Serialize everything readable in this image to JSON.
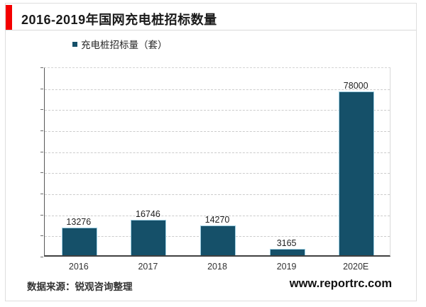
{
  "header": {
    "title": "2016-2019年国网充电桩招标数量",
    "accent_color": "#f40000"
  },
  "legend": {
    "label": "充电桩招标量（套）",
    "swatch_color": "#155069"
  },
  "chart_data": {
    "type": "bar",
    "title": "2016-2019年国网充电桩招标数量",
    "categories": [
      "2016",
      "2017",
      "2018",
      "2019",
      "2020E"
    ],
    "values": [
      13276,
      16746,
      14270,
      3165,
      78000
    ],
    "series_name": "充电桩招标量（套）",
    "xlabel": "",
    "ylabel": "",
    "ylim": [
      0,
      90000
    ],
    "ytick_step": 10000,
    "grid": "horizontal-dashed",
    "legend_position": "top",
    "bar_color": "#155069",
    "data_labels": true
  },
  "footer": {
    "source": "数据来源：锐观咨询整理",
    "website": "www.reportrc.com"
  }
}
